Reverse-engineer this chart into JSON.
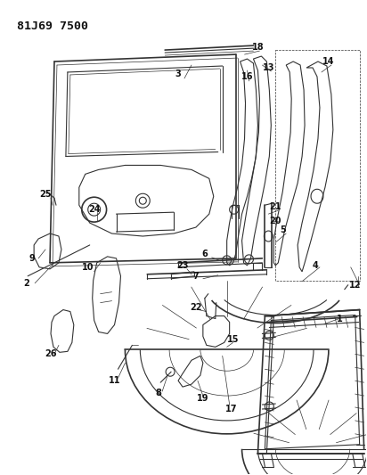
{
  "title": "81J69 7500",
  "bg_color": "#ffffff",
  "line_color": "#333333",
  "label_color": "#111111",
  "label_fontsize": 7.0,
  "fig_width": 4.12,
  "fig_height": 5.33,
  "dpi": 100
}
